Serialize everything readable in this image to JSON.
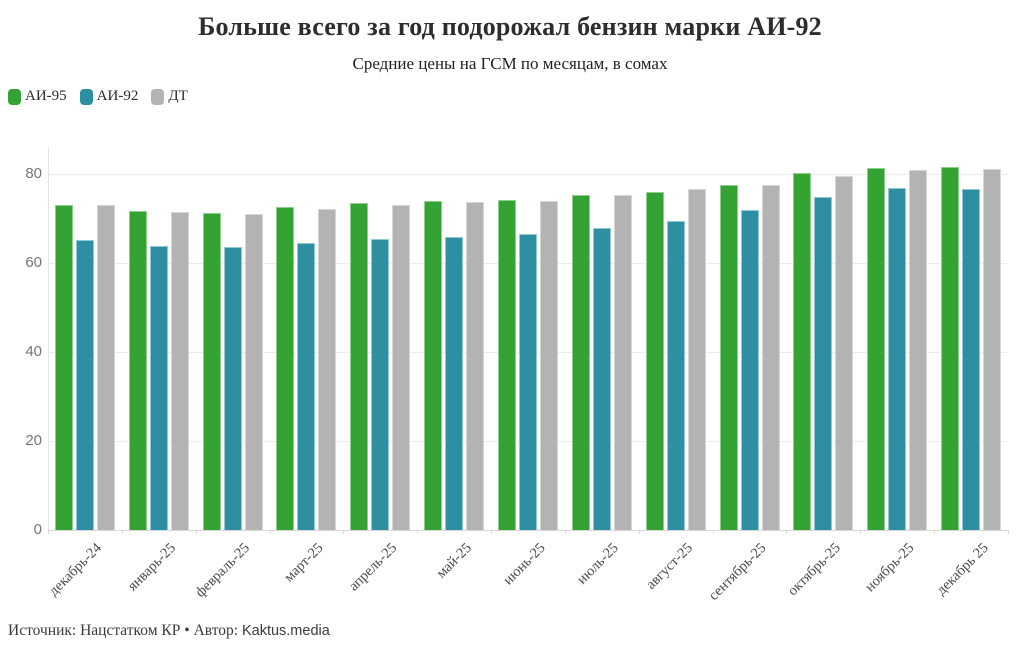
{
  "title": "Больше всего за год подорожал бензин марки АИ-92",
  "subtitle": "Средние цены на ГСМ по месяцам, в сомах",
  "legend": [
    {
      "label": "АИ-95",
      "color": "#35a333"
    },
    {
      "label": "АИ-92",
      "color": "#2d8fa1"
    },
    {
      "label": "ДТ",
      "color": "#b3b3b3"
    }
  ],
  "chart_data": {
    "type": "bar",
    "title": "Больше всего за год подорожал бензин марки АИ-92",
    "subtitle": "Средние цены на ГСМ по месяцам, в сомах",
    "categories": [
      "декабрь-24",
      "январь-25",
      "февраль-25",
      "март-25",
      "апрель-25",
      "май-25",
      "июнь-25",
      "июль-25",
      "август-25",
      "сентябрь-25",
      "октябрь-25",
      "ноябрь-25",
      "декабрь 25"
    ],
    "series": [
      {
        "name": "АИ-95",
        "color": "#35a333",
        "border_color": "#8fcf8d",
        "values": [
          73.1,
          71.7,
          71.2,
          72.5,
          73.4,
          73.8,
          74.1,
          75.2,
          76.0,
          77.6,
          80.3,
          81.2,
          81.6
        ]
      },
      {
        "name": "АИ-92",
        "color": "#2d8fa1",
        "border_color": "#92c8d5",
        "values": [
          65.2,
          63.8,
          63.6,
          64.5,
          65.4,
          65.9,
          66.4,
          67.8,
          69.4,
          71.9,
          74.8,
          76.9,
          76.5
        ]
      },
      {
        "name": "ДТ",
        "color": "#b3b3b3",
        "border_color": "#d6d6d6",
        "values": [
          72.9,
          71.5,
          71.0,
          72.2,
          73.1,
          73.6,
          74.0,
          75.2,
          76.5,
          77.4,
          79.5,
          80.8,
          81.1
        ]
      }
    ],
    "ylabel": "",
    "xlabel": "",
    "yticks": [
      0,
      20,
      40,
      60,
      80
    ],
    "ylim": [
      0,
      85.8
    ],
    "grid": true,
    "legend_position": "top-left"
  },
  "footer": {
    "prefix": "Источник: Нацстатком КР • Автор:",
    "brand": "Kaktus.media"
  }
}
